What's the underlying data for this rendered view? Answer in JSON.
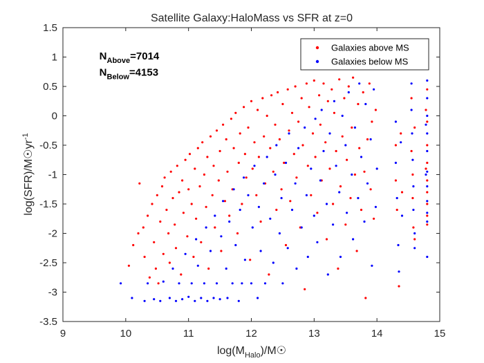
{
  "chart_data": {
    "type": "scatter",
    "title": "Satellite Galaxy:HaloMass vs SFR at z=0",
    "xlabel": {
      "main": "log(M",
      "sub": "Halo",
      "tail": ")/M☉"
    },
    "ylabel": {
      "main": "log(SFR)/M☉yr",
      "sup": "-1"
    },
    "xlim": [
      9,
      15
    ],
    "ylim": [
      -3.5,
      1.5
    ],
    "xticks": [
      "9",
      "10",
      "11",
      "12",
      "13",
      "14",
      "15"
    ],
    "yticks": [
      "-3.5",
      "-3",
      "-2.5",
      "-2",
      "-1.5",
      "-1",
      "-0.5",
      "0",
      "0.5",
      "1",
      "1.5"
    ],
    "legend_position": "top-right",
    "grid": false,
    "annotations": [
      {
        "main": "N",
        "sub": "Above",
        "tail": "=7014",
        "x": 9.58,
        "y": 0.96
      },
      {
        "main": "N",
        "sub": "Below",
        "tail": "=4153",
        "x": 9.58,
        "y": 0.68
      }
    ],
    "series": [
      {
        "name": "Galaxies above MS",
        "color": "#ff0000",
        "points": [
          [
            10.05,
            -2.55
          ],
          [
            10.12,
            -2.2
          ],
          [
            10.2,
            -2.0
          ],
          [
            10.22,
            -1.15
          ],
          [
            10.28,
            -1.9
          ],
          [
            10.3,
            -2.4
          ],
          [
            10.35,
            -1.7
          ],
          [
            10.38,
            -2.75
          ],
          [
            10.42,
            -1.5
          ],
          [
            10.45,
            -2.15
          ],
          [
            10.48,
            -2.6
          ],
          [
            10.5,
            -1.35
          ],
          [
            10.52,
            -2.85
          ],
          [
            10.55,
            -1.8
          ],
          [
            10.58,
            -1.2
          ],
          [
            10.6,
            -2.35
          ],
          [
            10.62,
            -1.05
          ],
          [
            10.65,
            -1.6
          ],
          [
            10.68,
            -2.0
          ],
          [
            10.7,
            -2.5
          ],
          [
            10.72,
            -0.95
          ],
          [
            10.75,
            -1.4
          ],
          [
            10.78,
            -1.85
          ],
          [
            10.8,
            -2.25
          ],
          [
            10.82,
            -0.85
          ],
          [
            10.85,
            -1.3
          ],
          [
            10.88,
            -2.7
          ],
          [
            10.9,
            -1.1
          ],
          [
            10.92,
            -1.65
          ],
          [
            10.95,
            -0.75
          ],
          [
            10.98,
            -2.05
          ],
          [
            11.0,
            -1.25
          ],
          [
            11.02,
            -0.65
          ],
          [
            11.05,
            -1.5
          ],
          [
            11.08,
            -2.4
          ],
          [
            11.1,
            -0.9
          ],
          [
            11.12,
            -1.75
          ],
          [
            11.15,
            -0.55
          ],
          [
            11.18,
            -1.2
          ],
          [
            11.2,
            -2.15
          ],
          [
            11.22,
            -0.45
          ],
          [
            11.25,
            -1.0
          ],
          [
            11.28,
            -1.55
          ],
          [
            11.3,
            -0.7
          ],
          [
            11.32,
            -2.6
          ],
          [
            11.35,
            -0.35
          ],
          [
            11.38,
            -1.35
          ],
          [
            11.4,
            -0.85
          ],
          [
            11.42,
            -1.9
          ],
          [
            11.45,
            -0.25
          ],
          [
            11.48,
            -1.1
          ],
          [
            11.5,
            -0.6
          ],
          [
            11.52,
            -2.3
          ],
          [
            11.55,
            -0.15
          ],
          [
            11.58,
            -1.45
          ],
          [
            11.6,
            -0.4
          ],
          [
            11.62,
            -0.95
          ],
          [
            11.65,
            -1.7
          ],
          [
            11.68,
            -0.05
          ],
          [
            11.7,
            -1.25
          ],
          [
            11.72,
            -0.55
          ],
          [
            11.75,
            0.05
          ],
          [
            11.78,
            -2.0
          ],
          [
            11.8,
            -0.8
          ],
          [
            11.82,
            -0.3
          ],
          [
            11.85,
            -1.5
          ],
          [
            11.88,
            0.15
          ],
          [
            11.9,
            -0.65
          ],
          [
            11.92,
            -1.05
          ],
          [
            11.95,
            -0.2
          ],
          [
            11.98,
            -2.45
          ],
          [
            12.0,
            0.25
          ],
          [
            12.02,
            -0.9
          ],
          [
            12.05,
            -0.45
          ],
          [
            12.08,
            -1.35
          ],
          [
            12.1,
            0.1
          ],
          [
            12.12,
            -0.7
          ],
          [
            12.15,
            -1.8
          ],
          [
            12.18,
            0.3
          ],
          [
            12.2,
            -0.35
          ],
          [
            12.22,
            -1.15
          ],
          [
            12.25,
            0.0
          ],
          [
            12.28,
            -2.7
          ],
          [
            12.3,
            -0.55
          ],
          [
            12.32,
            0.35
          ],
          [
            12.35,
            -0.95
          ],
          [
            12.38,
            -0.15
          ],
          [
            12.4,
            -1.6
          ],
          [
            12.42,
            0.4
          ],
          [
            12.45,
            -0.4
          ],
          [
            12.48,
            -1.25
          ],
          [
            12.5,
            0.2
          ],
          [
            12.52,
            -0.8
          ],
          [
            12.55,
            -2.2
          ],
          [
            12.58,
            0.45
          ],
          [
            12.6,
            -0.25
          ],
          [
            12.62,
            -1.45
          ],
          [
            12.65,
            0.05
          ],
          [
            12.68,
            -0.65
          ],
          [
            12.7,
            0.5
          ],
          [
            12.72,
            -1.05
          ],
          [
            12.75,
            -0.1
          ],
          [
            12.78,
            -1.9
          ],
          [
            12.8,
            0.3
          ],
          [
            12.82,
            -0.5
          ],
          [
            12.85,
            -2.95
          ],
          [
            12.88,
            0.55
          ],
          [
            12.9,
            -0.85
          ],
          [
            12.92,
            0.15
          ],
          [
            12.95,
            -1.35
          ],
          [
            12.98,
            -0.3
          ],
          [
            13.0,
            0.6
          ],
          [
            13.02,
            -0.7
          ],
          [
            13.05,
            -1.65
          ],
          [
            13.08,
            0.35
          ],
          [
            13.1,
            -0.15
          ],
          [
            13.12,
            -1.1
          ],
          [
            13.15,
            0.55
          ],
          [
            13.18,
            -0.45
          ],
          [
            13.2,
            -2.1
          ],
          [
            13.22,
            0.25
          ],
          [
            13.25,
            -0.9
          ],
          [
            13.28,
            0.45
          ],
          [
            13.3,
            -1.5
          ],
          [
            13.32,
            0.05
          ],
          [
            13.35,
            -0.6
          ],
          [
            13.38,
            -2.6
          ],
          [
            13.4,
            0.62
          ],
          [
            13.42,
            -1.2
          ],
          [
            13.45,
            -0.35
          ],
          [
            13.48,
            0.3
          ],
          [
            13.5,
            -1.85
          ],
          [
            13.52,
            -0.75
          ],
          [
            13.55,
            0.5
          ],
          [
            13.58,
            -1.4
          ],
          [
            13.6,
            -0.2
          ],
          [
            13.62,
            0.65
          ],
          [
            13.65,
            -1.0
          ],
          [
            13.68,
            -2.3
          ],
          [
            13.7,
            0.2
          ],
          [
            13.72,
            -0.55
          ],
          [
            13.75,
            -1.6
          ],
          [
            13.78,
            0.4
          ],
          [
            13.8,
            -0.95
          ],
          [
            13.82,
            -3.1
          ],
          [
            13.85,
            -0.4
          ],
          [
            13.88,
            0.55
          ],
          [
            13.9,
            -1.25
          ],
          [
            13.92,
            -0.1
          ],
          [
            13.95,
            -1.75
          ],
          [
            13.98,
            0.1
          ],
          [
            14.3,
            -0.5
          ],
          [
            14.3,
            -1.1
          ],
          [
            14.32,
            -1.6
          ],
          [
            14.35,
            -2.9
          ],
          [
            14.38,
            -0.3
          ],
          [
            14.4,
            -1.3
          ],
          [
            14.55,
            0.3
          ],
          [
            14.55,
            -0.6
          ],
          [
            14.57,
            -1.0
          ],
          [
            14.57,
            -1.4
          ],
          [
            14.58,
            -1.9
          ],
          [
            14.6,
            -0.2
          ],
          [
            14.6,
            -2.1
          ],
          [
            14.8,
            0.45
          ],
          [
            14.8,
            -0.1
          ],
          [
            14.8,
            -0.5
          ],
          [
            14.8,
            -0.8
          ],
          [
            14.8,
            -1.1
          ],
          [
            14.8,
            -1.3
          ],
          [
            14.8,
            -1.5
          ],
          [
            14.8,
            -1.7
          ],
          [
            14.8,
            -1.85
          ],
          [
            14.78,
            0.1
          ],
          [
            14.78,
            -0.9
          ]
        ]
      },
      {
        "name": "Galaxies below MS",
        "color": "#0000ff",
        "points": [
          [
            9.92,
            -2.85
          ],
          [
            10.1,
            -3.1
          ],
          [
            10.3,
            -3.15
          ],
          [
            10.35,
            -2.85
          ],
          [
            10.45,
            -3.12
          ],
          [
            10.55,
            -3.15
          ],
          [
            10.6,
            -2.82
          ],
          [
            10.7,
            -3.1
          ],
          [
            10.75,
            -2.6
          ],
          [
            10.8,
            -3.15
          ],
          [
            10.85,
            -2.85
          ],
          [
            10.9,
            -3.12
          ],
          [
            10.95,
            -2.35
          ],
          [
            11.0,
            -3.08
          ],
          [
            11.05,
            -2.85
          ],
          [
            11.1,
            -3.15
          ],
          [
            11.12,
            -2.1
          ],
          [
            11.15,
            -2.55
          ],
          [
            11.2,
            -3.1
          ],
          [
            11.25,
            -2.85
          ],
          [
            11.28,
            -1.9
          ],
          [
            11.3,
            -3.15
          ],
          [
            11.35,
            -2.3
          ],
          [
            11.4,
            -3.1
          ],
          [
            11.42,
            -1.7
          ],
          [
            11.45,
            -2.85
          ],
          [
            11.5,
            -3.12
          ],
          [
            11.52,
            -2.05
          ],
          [
            11.55,
            -1.45
          ],
          [
            11.6,
            -2.6
          ],
          [
            11.62,
            -3.1
          ],
          [
            11.65,
            -1.8
          ],
          [
            11.7,
            -2.85
          ],
          [
            11.72,
            -1.25
          ],
          [
            11.75,
            -2.2
          ],
          [
            11.8,
            -3.15
          ],
          [
            11.82,
            -1.6
          ],
          [
            11.85,
            -2.85
          ],
          [
            11.88,
            -1.05
          ],
          [
            11.9,
            -2.45
          ],
          [
            11.95,
            -1.35
          ],
          [
            12.0,
            -2.85
          ],
          [
            12.02,
            -1.9
          ],
          [
            12.05,
            -0.85
          ],
          [
            12.1,
            -3.1
          ],
          [
            12.12,
            -1.55
          ],
          [
            12.15,
            -2.3
          ],
          [
            12.2,
            -1.15
          ],
          [
            12.22,
            -2.85
          ],
          [
            12.25,
            -0.7
          ],
          [
            12.3,
            -1.75
          ],
          [
            12.35,
            -2.5
          ],
          [
            12.38,
            -1.0
          ],
          [
            12.4,
            -0.5
          ],
          [
            12.45,
            -2.0
          ],
          [
            12.48,
            -1.4
          ],
          [
            12.5,
            -2.85
          ],
          [
            12.55,
            -0.8
          ],
          [
            12.58,
            -2.25
          ],
          [
            12.6,
            -0.3
          ],
          [
            12.65,
            -1.6
          ],
          [
            12.7,
            -1.15
          ],
          [
            12.72,
            -2.6
          ],
          [
            12.75,
            -0.55
          ],
          [
            12.8,
            -1.9
          ],
          [
            12.85,
            -0.2
          ],
          [
            12.88,
            -1.35
          ],
          [
            12.9,
            -2.4
          ],
          [
            12.95,
            -0.9
          ],
          [
            13.0,
            -1.7
          ],
          [
            13.02,
            -0.05
          ],
          [
            13.05,
            -2.15
          ],
          [
            13.1,
            -1.1
          ],
          [
            13.12,
            0.1
          ],
          [
            13.15,
            -0.6
          ],
          [
            13.2,
            -1.5
          ],
          [
            13.22,
            -2.7
          ],
          [
            13.25,
            -0.3
          ],
          [
            13.3,
            -1.85
          ],
          [
            13.32,
            0.25
          ],
          [
            13.35,
            -0.85
          ],
          [
            13.4,
            -1.3
          ],
          [
            13.42,
            -2.4
          ],
          [
            13.45,
            0.0
          ],
          [
            13.5,
            -0.5
          ],
          [
            13.52,
            -1.65
          ],
          [
            13.55,
            0.4
          ],
          [
            13.6,
            -1.0
          ],
          [
            13.62,
            -2.1
          ],
          [
            13.65,
            -0.2
          ],
          [
            13.7,
            -1.4
          ],
          [
            13.72,
            0.55
          ],
          [
            13.75,
            -0.7
          ],
          [
            13.8,
            -1.8
          ],
          [
            13.82,
            0.2
          ],
          [
            13.85,
            -1.15
          ],
          [
            13.9,
            -0.4
          ],
          [
            13.92,
            -2.55
          ],
          [
            13.95,
            0.45
          ],
          [
            13.98,
            -1.55
          ],
          [
            14.0,
            -0.9
          ],
          [
            14.3,
            -0.1
          ],
          [
            14.3,
            -0.8
          ],
          [
            14.32,
            -1.4
          ],
          [
            14.34,
            -2.2
          ],
          [
            14.35,
            -2.65
          ],
          [
            14.38,
            -0.45
          ],
          [
            14.4,
            -1.7
          ],
          [
            14.55,
            0.55
          ],
          [
            14.55,
            0.1
          ],
          [
            14.56,
            -0.3
          ],
          [
            14.57,
            -0.75
          ],
          [
            14.58,
            -1.2
          ],
          [
            14.58,
            -1.6
          ],
          [
            14.6,
            -2.0
          ],
          [
            14.6,
            -2.25
          ],
          [
            14.8,
            1.2
          ],
          [
            14.8,
            0.6
          ],
          [
            14.8,
            0.3
          ],
          [
            14.8,
            0.0
          ],
          [
            14.8,
            -0.3
          ],
          [
            14.8,
            -0.6
          ],
          [
            14.8,
            -0.95
          ],
          [
            14.8,
            -1.2
          ],
          [
            14.8,
            -1.45
          ],
          [
            14.8,
            -1.65
          ],
          [
            14.8,
            -1.8
          ],
          [
            14.8,
            -2.4
          ],
          [
            14.78,
            -0.15
          ],
          [
            14.78,
            -1.0
          ]
        ]
      }
    ]
  }
}
